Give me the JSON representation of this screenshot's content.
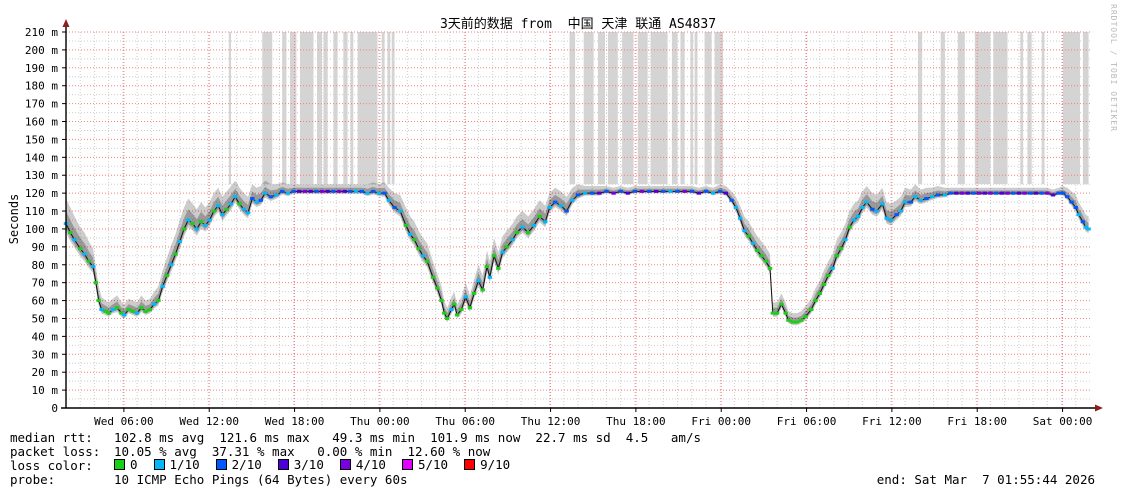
{
  "title": "3天前的数据 from  中国 天津 联通 AS4837",
  "watermark": "RRDTOOL / TOBI OETIKER",
  "end_label": "end: Sat Mar  7 01:55:44 2026",
  "legend": {
    "median_label": "median rtt:",
    "median_text": "102.8 ms avg  121.6 ms max   49.3 ms min  101.9 ms now  22.7 ms sd  4.5   am/s",
    "loss_label": "packet loss:",
    "loss_text": "10.05 % avg  37.31 % max   0.00 % min  12.60 % now",
    "loss_color_label": "loss color:",
    "probe_label": "probe:",
    "probe_text": "10 ICMP Echo Pings (64 Bytes) every 60s"
  },
  "chart_data": {
    "type": "line",
    "title": "3天前的数据 from 中国 天津 联通 AS4837",
    "ylabel": "Seconds",
    "y_unit_suffix": " m",
    "ylim": [
      0,
      210
    ],
    "y_tick_step": 10,
    "x_span_hours": 72,
    "x_tick_interval_hours": 6,
    "x_first_tick_hour": 4.07,
    "x_ticks": [
      "Wed 06:00",
      "Wed 12:00",
      "Wed 18:00",
      "Thu 00:00",
      "Thu 06:00",
      "Thu 12:00",
      "Thu 18:00",
      "Fri 00:00",
      "Fri 06:00",
      "Fri 12:00",
      "Fri 18:00",
      "Sat 00:00"
    ],
    "stats": {
      "avg_ms": 102.8,
      "max_ms": 121.6,
      "min_ms": 49.3,
      "now_ms": 101.9,
      "sd_ms": 22.7,
      "am_s": 4.5
    },
    "loss_stats": {
      "avg_pct": 10.05,
      "max_pct": 37.31,
      "min_pct": 0.0,
      "now_pct": 12.6
    },
    "probe": "10 ICMP Echo Pings (64 Bytes) every 60s",
    "loss_levels": [
      {
        "label": "0",
        "color": "#17d117"
      },
      {
        "label": "1/10",
        "color": "#00b8ff"
      },
      {
        "label": "2/10",
        "color": "#0059ff"
      },
      {
        "label": "3/10",
        "color": "#4e00d8"
      },
      {
        "label": "4/10",
        "color": "#7a00e0"
      },
      {
        "label": "5/10",
        "color": "#e000ff"
      },
      {
        "label": "9/10",
        "color": "#ff0000"
      }
    ],
    "colors": {
      "grid_major": "#ff7a7a",
      "grid_minor": "#cdcdcd",
      "axis": "#000000",
      "arrow": "#8f1f1f",
      "loss_band": "#d4d4d4",
      "smoke": "#000000",
      "median_line": "#111111"
    },
    "loss_bands_hours": [
      [
        11.45,
        11.6
      ],
      [
        13.8,
        14.5
      ],
      [
        15.2,
        15.5
      ],
      [
        15.75,
        16.2
      ],
      [
        16.45,
        17.4
      ],
      [
        17.65,
        18.0
      ],
      [
        18.1,
        18.4
      ],
      [
        18.8,
        19.1
      ],
      [
        19.5,
        19.8
      ],
      [
        20.0,
        20.2
      ],
      [
        20.5,
        21.9
      ],
      [
        22.2,
        22.4
      ],
      [
        22.6,
        22.8
      ],
      [
        22.9,
        23.1
      ],
      [
        35.4,
        35.8
      ],
      [
        36.4,
        37.1
      ],
      [
        37.4,
        37.9
      ],
      [
        38.1,
        38.8
      ],
      [
        39.1,
        39.9
      ],
      [
        40.2,
        40.9
      ],
      [
        41.1,
        42.3
      ],
      [
        42.6,
        43.0
      ],
      [
        43.2,
        43.5
      ],
      [
        43.9,
        44.1
      ],
      [
        44.2,
        44.4
      ],
      [
        44.9,
        45.4
      ],
      [
        45.6,
        46.2
      ],
      [
        59.9,
        60.2
      ],
      [
        61.5,
        61.8
      ],
      [
        62.7,
        63.2
      ],
      [
        63.9,
        65.0
      ],
      [
        65.2,
        66.2
      ],
      [
        67.1,
        67.3
      ],
      [
        67.6,
        67.9
      ],
      [
        68.6,
        68.8
      ],
      [
        70.1,
        71.3
      ],
      [
        71.5,
        71.9
      ]
    ],
    "loss_bands_bottom_ms": 125,
    "median_points": [
      [
        0.0,
        103,
        1,
        14
      ],
      [
        0.3,
        98,
        0,
        14
      ],
      [
        0.6,
        94,
        1,
        13
      ],
      [
        1.0,
        89,
        0,
        12
      ],
      [
        1.3,
        86,
        1,
        12
      ],
      [
        1.6,
        82,
        0,
        11
      ],
      [
        1.9,
        79,
        1,
        10
      ],
      [
        2.1,
        70,
        0,
        9
      ],
      [
        2.3,
        60,
        0,
        8
      ],
      [
        2.5,
        55,
        1,
        7
      ],
      [
        2.8,
        54,
        0,
        6
      ],
      [
        3.0,
        53,
        0,
        6
      ],
      [
        3.3,
        55,
        1,
        6
      ],
      [
        3.6,
        56,
        0,
        7
      ],
      [
        3.9,
        53,
        0,
        6
      ],
      [
        4.1,
        52,
        1,
        6
      ],
      [
        4.4,
        55,
        0,
        6
      ],
      [
        4.7,
        54,
        0,
        6
      ],
      [
        5.0,
        53,
        1,
        6
      ],
      [
        5.3,
        56,
        0,
        7
      ],
      [
        5.6,
        54,
        0,
        6
      ],
      [
        5.9,
        55,
        0,
        6
      ],
      [
        6.2,
        58,
        1,
        7
      ],
      [
        6.5,
        60,
        0,
        8
      ],
      [
        6.8,
        68,
        1,
        9
      ],
      [
        7.1,
        74,
        0,
        10
      ],
      [
        7.4,
        80,
        1,
        11
      ],
      [
        7.7,
        86,
        0,
        11
      ],
      [
        8.0,
        93,
        1,
        12
      ],
      [
        8.3,
        100,
        0,
        12
      ],
      [
        8.6,
        105,
        1,
        12
      ],
      [
        8.9,
        103,
        0,
        11
      ],
      [
        9.2,
        100,
        1,
        11
      ],
      [
        9.5,
        104,
        0,
        11
      ],
      [
        9.8,
        102,
        1,
        10
      ],
      [
        10.1,
        105,
        1,
        10
      ],
      [
        10.4,
        110,
        0,
        10
      ],
      [
        10.7,
        113,
        1,
        10
      ],
      [
        11.0,
        108,
        1,
        10
      ],
      [
        11.3,
        111,
        0,
        10
      ],
      [
        11.6,
        114,
        1,
        10
      ],
      [
        11.9,
        118,
        1,
        9
      ],
      [
        12.2,
        114,
        0,
        9
      ],
      [
        12.5,
        111,
        1,
        9
      ],
      [
        12.8,
        109,
        1,
        9
      ],
      [
        13.1,
        117,
        2,
        8
      ],
      [
        13.4,
        115,
        1,
        8
      ],
      [
        13.7,
        116,
        2,
        8
      ],
      [
        14.0,
        120,
        1,
        7
      ],
      [
        14.4,
        118,
        2,
        7
      ],
      [
        14.8,
        119,
        1,
        6
      ],
      [
        15.2,
        121,
        2,
        5
      ],
      [
        15.6,
        120,
        1,
        5
      ],
      [
        16.0,
        121,
        2,
        4
      ],
      [
        16.4,
        121,
        3,
        4
      ],
      [
        16.8,
        121,
        4,
        4
      ],
      [
        17.2,
        121,
        3,
        4
      ],
      [
        17.6,
        121,
        2,
        4
      ],
      [
        18.0,
        121,
        4,
        4
      ],
      [
        18.4,
        121,
        3,
        4
      ],
      [
        18.8,
        121,
        2,
        4
      ],
      [
        19.2,
        121,
        4,
        4
      ],
      [
        19.6,
        121,
        3,
        4
      ],
      [
        20.0,
        121,
        2,
        4
      ],
      [
        20.4,
        121,
        1,
        4
      ],
      [
        20.8,
        121,
        2,
        4
      ],
      [
        21.2,
        120,
        1,
        5
      ],
      [
        21.6,
        121,
        2,
        5
      ],
      [
        22.0,
        120,
        1,
        5
      ],
      [
        22.4,
        120,
        2,
        6
      ],
      [
        22.7,
        116,
        1,
        7
      ],
      [
        23.1,
        112,
        2,
        8
      ],
      [
        23.5,
        110,
        1,
        9
      ],
      [
        23.9,
        102,
        0,
        10
      ],
      [
        24.2,
        97,
        1,
        10
      ],
      [
        24.5,
        94,
        0,
        10
      ],
      [
        24.8,
        89,
        0,
        10
      ],
      [
        25.1,
        85,
        1,
        10
      ],
      [
        25.4,
        82,
        0,
        10
      ],
      [
        25.8,
        73,
        0,
        9
      ],
      [
        26.1,
        67,
        0,
        8
      ],
      [
        26.4,
        60,
        0,
        8
      ],
      [
        26.6,
        53,
        0,
        7
      ],
      [
        26.8,
        50,
        0,
        6
      ],
      [
        27.1,
        55,
        1,
        7
      ],
      [
        27.3,
        58,
        0,
        7
      ],
      [
        27.5,
        52,
        0,
        6
      ],
      [
        27.8,
        55,
        0,
        7
      ],
      [
        28.1,
        62,
        1,
        8
      ],
      [
        28.4,
        56,
        0,
        7
      ],
      [
        28.7,
        64,
        0,
        8
      ],
      [
        29.0,
        71,
        1,
        9
      ],
      [
        29.3,
        66,
        0,
        8
      ],
      [
        29.6,
        79,
        0,
        9
      ],
      [
        29.8,
        73,
        1,
        9
      ],
      [
        30.1,
        85,
        0,
        10
      ],
      [
        30.4,
        78,
        0,
        9
      ],
      [
        30.7,
        87,
        1,
        9
      ],
      [
        31.0,
        90,
        0,
        9
      ],
      [
        31.4,
        94,
        1,
        9
      ],
      [
        31.7,
        98,
        0,
        9
      ],
      [
        32.1,
        101,
        1,
        9
      ],
      [
        32.5,
        98,
        0,
        9
      ],
      [
        32.9,
        102,
        1,
        9
      ],
      [
        33.3,
        107,
        0,
        9
      ],
      [
        33.7,
        104,
        1,
        9
      ],
      [
        34.0,
        112,
        1,
        8
      ],
      [
        34.4,
        115,
        2,
        8
      ],
      [
        34.8,
        113,
        1,
        8
      ],
      [
        35.2,
        110,
        2,
        8
      ],
      [
        35.6,
        116,
        1,
        7
      ],
      [
        36.0,
        119,
        2,
        6
      ],
      [
        36.5,
        120,
        1,
        4
      ],
      [
        37.0,
        120,
        2,
        4
      ],
      [
        37.5,
        120,
        3,
        4
      ],
      [
        38.0,
        121,
        2,
        3
      ],
      [
        38.5,
        120,
        4,
        3
      ],
      [
        39.0,
        121,
        2,
        3
      ],
      [
        39.5,
        120,
        3,
        3
      ],
      [
        40.0,
        121,
        2,
        3
      ],
      [
        40.5,
        121,
        4,
        3
      ],
      [
        41.0,
        121,
        2,
        3
      ],
      [
        41.5,
        121,
        3,
        3
      ],
      [
        42.0,
        121,
        2,
        3
      ],
      [
        42.5,
        121,
        1,
        3
      ],
      [
        43.0,
        121,
        2,
        3
      ],
      [
        43.5,
        121,
        4,
        3
      ],
      [
        44.0,
        121,
        2,
        3
      ],
      [
        44.5,
        120,
        3,
        3
      ],
      [
        45.0,
        121,
        2,
        3
      ],
      [
        45.5,
        120,
        1,
        3
      ],
      [
        46.0,
        121,
        2,
        4
      ],
      [
        46.4,
        120,
        3,
        4
      ],
      [
        46.8,
        116,
        2,
        5
      ],
      [
        47.1,
        112,
        1,
        6
      ],
      [
        47.4,
        106,
        1,
        7
      ],
      [
        47.7,
        99,
        1,
        8
      ],
      [
        48.0,
        96,
        0,
        8
      ],
      [
        48.3,
        92,
        1,
        8
      ],
      [
        48.6,
        88,
        0,
        8
      ],
      [
        48.9,
        85,
        0,
        8
      ],
      [
        49.2,
        82,
        0,
        8
      ],
      [
        49.5,
        78,
        0,
        8
      ],
      [
        49.7,
        53,
        0,
        6
      ],
      [
        50.0,
        53,
        0,
        6
      ],
      [
        50.3,
        58,
        0,
        6
      ],
      [
        50.6,
        53,
        0,
        6
      ],
      [
        50.8,
        49,
        0,
        5
      ],
      [
        51.1,
        48,
        0,
        5
      ],
      [
        51.4,
        48,
        0,
        5
      ],
      [
        51.7,
        49,
        0,
        5
      ],
      [
        52.0,
        51,
        0,
        6
      ],
      [
        52.4,
        55,
        0,
        6
      ],
      [
        52.7,
        60,
        0,
        7
      ],
      [
        53.0,
        64,
        0,
        7
      ],
      [
        53.3,
        69,
        0,
        8
      ],
      [
        53.6,
        74,
        0,
        8
      ],
      [
        53.9,
        78,
        1,
        8
      ],
      [
        54.2,
        85,
        0,
        9
      ],
      [
        54.5,
        89,
        0,
        9
      ],
      [
        54.8,
        94,
        1,
        9
      ],
      [
        55.1,
        101,
        0,
        9
      ],
      [
        55.4,
        105,
        1,
        9
      ],
      [
        55.7,
        107,
        1,
        9
      ],
      [
        56.0,
        112,
        1,
        9
      ],
      [
        56.3,
        115,
        1,
        9
      ],
      [
        56.7,
        111,
        2,
        9
      ],
      [
        57.0,
        110,
        1,
        9
      ],
      [
        57.4,
        114,
        1,
        9
      ],
      [
        57.7,
        106,
        1,
        9
      ],
      [
        58.0,
        105,
        1,
        9
      ],
      [
        58.4,
        108,
        2,
        8
      ],
      [
        58.7,
        110,
        1,
        8
      ],
      [
        59.0,
        115,
        1,
        8
      ],
      [
        59.4,
        115,
        2,
        7
      ],
      [
        59.7,
        118,
        1,
        7
      ],
      [
        60.1,
        116,
        1,
        6
      ],
      [
        60.5,
        117,
        2,
        6
      ],
      [
        60.9,
        118,
        1,
        5
      ],
      [
        61.3,
        119,
        2,
        5
      ],
      [
        61.8,
        119,
        1,
        4
      ],
      [
        62.2,
        120,
        2,
        3
      ],
      [
        62.6,
        120,
        3,
        3
      ],
      [
        63.0,
        120,
        4,
        3
      ],
      [
        63.4,
        120,
        3,
        3
      ],
      [
        63.8,
        120,
        2,
        3
      ],
      [
        64.2,
        120,
        4,
        3
      ],
      [
        64.6,
        120,
        3,
        3
      ],
      [
        65.0,
        120,
        4,
        3
      ],
      [
        65.4,
        120,
        2,
        3
      ],
      [
        65.8,
        120,
        3,
        3
      ],
      [
        66.2,
        120,
        4,
        3
      ],
      [
        66.6,
        120,
        2,
        3
      ],
      [
        67.0,
        120,
        3,
        3
      ],
      [
        67.4,
        120,
        4,
        3
      ],
      [
        67.8,
        120,
        2,
        3
      ],
      [
        68.2,
        120,
        3,
        3
      ],
      [
        68.6,
        120,
        2,
        3
      ],
      [
        69.0,
        120,
        4,
        3
      ],
      [
        69.4,
        119,
        3,
        3
      ],
      [
        69.8,
        120,
        2,
        3
      ],
      [
        70.1,
        120,
        2,
        4
      ],
      [
        70.4,
        118,
        2,
        5
      ],
      [
        70.7,
        115,
        2,
        6
      ],
      [
        71.0,
        112,
        2,
        7
      ],
      [
        71.2,
        108,
        1,
        7
      ],
      [
        71.5,
        104,
        2,
        7
      ],
      [
        71.7,
        101,
        1,
        7
      ],
      [
        71.9,
        100,
        1,
        7
      ]
    ]
  }
}
